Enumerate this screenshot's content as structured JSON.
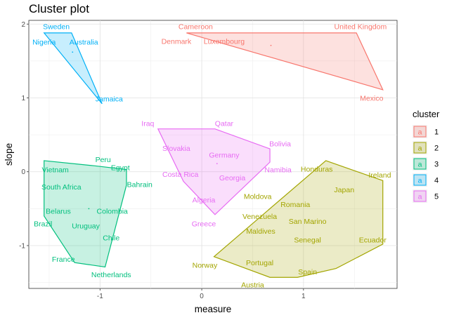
{
  "title": "Cluster plot",
  "chart_data": {
    "type": "scatter",
    "title": "Cluster plot",
    "xlabel": "measure",
    "ylabel": "slope",
    "xlim": [
      -1.7,
      1.92
    ],
    "ylim": [
      -1.58,
      2.05
    ],
    "x_ticks": [
      -1,
      0,
      1
    ],
    "y_ticks": [
      -1,
      0,
      1,
      2
    ],
    "grid": true,
    "legend": {
      "title": "cluster",
      "position": "right",
      "entries": [
        {
          "label": "1",
          "color": "#F8766D"
        },
        {
          "label": "2",
          "color": "#A3A500"
        },
        {
          "label": "3",
          "color": "#00BF7D"
        },
        {
          "label": "4",
          "color": "#00B0F6"
        },
        {
          "label": "5",
          "color": "#E76BF3"
        }
      ]
    },
    "series": [
      {
        "name": "1",
        "color": "#F8766D",
        "hull": [
          [
            -0.15,
            1.88
          ],
          [
            1.52,
            1.88
          ],
          [
            1.78,
            1.11
          ]
        ],
        "centroid": [
          0.68,
          1.71
        ],
        "points": [
          {
            "label": "Cameroon",
            "x": -0.06,
            "y": 1.97
          },
          {
            "label": "United Kingdom",
            "x": 1.56,
            "y": 1.97
          },
          {
            "label": "Denmark",
            "x": -0.25,
            "y": 1.77
          },
          {
            "label": "Luxembourg",
            "x": 0.22,
            "y": 1.77
          },
          {
            "label": "Mexico",
            "x": 1.67,
            "y": 1.0
          }
        ]
      },
      {
        "name": "2",
        "color": "#A3A500",
        "hull": [
          [
            0.12,
            -1.15
          ],
          [
            0.67,
            -1.43
          ],
          [
            0.94,
            -1.43
          ],
          [
            1.32,
            -1.31
          ],
          [
            1.78,
            -0.98
          ],
          [
            1.78,
            -0.12
          ],
          [
            1.22,
            0.15
          ]
        ],
        "centroid": [
          1.1,
          -0.7
        ],
        "points": [
          {
            "label": "Honduras",
            "x": 1.13,
            "y": 0.04
          },
          {
            "label": "Ireland",
            "x": 1.75,
            "y": -0.04
          },
          {
            "label": "Japan",
            "x": 1.4,
            "y": -0.24
          },
          {
            "label": "Moldova",
            "x": 0.55,
            "y": -0.33
          },
          {
            "label": "Romania",
            "x": 0.92,
            "y": -0.44
          },
          {
            "label": "Venezuela",
            "x": 0.57,
            "y": -0.6
          },
          {
            "label": "San Marino",
            "x": 1.04,
            "y": -0.67
          },
          {
            "label": "Maldives",
            "x": 0.58,
            "y": -0.8
          },
          {
            "label": "Senegal",
            "x": 1.04,
            "y": -0.92
          },
          {
            "label": "Ecuador",
            "x": 1.68,
            "y": -0.92
          },
          {
            "label": "Portugal",
            "x": 0.57,
            "y": -1.23
          },
          {
            "label": "Norway",
            "x": 0.03,
            "y": -1.26
          },
          {
            "label": "Spain",
            "x": 1.04,
            "y": -1.35
          },
          {
            "label": "Austria",
            "x": 0.5,
            "y": -1.53
          }
        ]
      },
      {
        "name": "3",
        "color": "#00BF7D",
        "hull": [
          [
            -1.55,
            0.15
          ],
          [
            -1.05,
            0.08
          ],
          [
            -0.74,
            0.03
          ],
          [
            -0.74,
            -0.18
          ],
          [
            -0.95,
            -1.29
          ],
          [
            -1.25,
            -1.23
          ],
          [
            -1.55,
            -0.6
          ]
        ],
        "centroid": [
          -1.11,
          -0.5
        ],
        "points": [
          {
            "label": "Peru",
            "x": -0.97,
            "y": 0.17
          },
          {
            "label": "Vietnam",
            "x": -1.44,
            "y": 0.03
          },
          {
            "label": "Egypt",
            "x": -0.8,
            "y": 0.06
          },
          {
            "label": "South Africa",
            "x": -1.38,
            "y": -0.2
          },
          {
            "label": "Bahrain",
            "x": -0.61,
            "y": -0.17
          },
          {
            "label": "Belarus",
            "x": -1.41,
            "y": -0.53
          },
          {
            "label": "Colombia",
            "x": -0.88,
            "y": -0.53
          },
          {
            "label": "Brazil",
            "x": -1.56,
            "y": -0.7
          },
          {
            "label": "Uruguay",
            "x": -1.14,
            "y": -0.73
          },
          {
            "label": "Chile",
            "x": -0.89,
            "y": -0.89
          },
          {
            "label": "France",
            "x": -1.36,
            "y": -1.18
          },
          {
            "label": "Netherlands",
            "x": -0.89,
            "y": -1.39
          }
        ]
      },
      {
        "name": "4",
        "color": "#00B0F6",
        "hull": [
          [
            -1.55,
            1.88
          ],
          [
            -1.28,
            1.88
          ],
          [
            -0.98,
            0.92
          ]
        ],
        "centroid": [
          -1.27,
          1.62
        ],
        "points": [
          {
            "label": "Sweden",
            "x": -1.43,
            "y": 1.97
          },
          {
            "label": "Nigeria",
            "x": -1.55,
            "y": 1.76
          },
          {
            "label": "Australia",
            "x": -1.16,
            "y": 1.76
          },
          {
            "label": "Jamaica",
            "x": -0.91,
            "y": 0.99
          }
        ]
      },
      {
        "name": "5",
        "color": "#E76BF3",
        "hull": [
          [
            -0.43,
            0.58
          ],
          [
            0.13,
            0.58
          ],
          [
            0.67,
            0.31
          ],
          [
            0.67,
            0.13
          ],
          [
            0.13,
            -0.58
          ],
          [
            -0.18,
            -0.13
          ]
        ],
        "centroid": [
          0.15,
          0.11
        ],
        "points": [
          {
            "label": "Qatar",
            "x": 0.22,
            "y": 0.66
          },
          {
            "label": "Iraq",
            "x": -0.53,
            "y": 0.66
          },
          {
            "label": "Bolivia",
            "x": 0.77,
            "y": 0.38
          },
          {
            "label": "Slovakia",
            "x": -0.25,
            "y": 0.32
          },
          {
            "label": "Germany",
            "x": 0.22,
            "y": 0.23
          },
          {
            "label": "Namibia",
            "x": 0.75,
            "y": 0.03
          },
          {
            "label": "Costa Rica",
            "x": -0.21,
            "y": -0.03
          },
          {
            "label": "Georgia",
            "x": 0.3,
            "y": -0.08
          },
          {
            "label": "Algeria",
            "x": 0.02,
            "y": -0.38
          },
          {
            "label": "Greece",
            "x": 0.02,
            "y": -0.7
          }
        ]
      }
    ]
  }
}
